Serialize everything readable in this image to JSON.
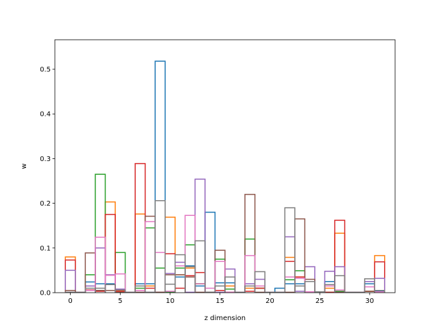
{
  "chart_data": {
    "type": "step",
    "title": "",
    "xlabel": "z dimension",
    "ylabel": "w",
    "xlim": [
      -1.55,
      32.55
    ],
    "ylim": [
      0,
      0.566
    ],
    "xticks": [
      0,
      5,
      10,
      15,
      20,
      25,
      30
    ],
    "yticks": [
      0.0,
      0.1,
      0.2,
      0.3,
      0.4,
      0.5
    ],
    "bins": [
      0,
      1,
      2,
      3,
      4,
      5,
      6,
      7,
      8,
      9,
      10,
      11,
      12,
      13,
      14,
      15,
      16,
      17,
      18,
      19,
      20,
      21,
      22,
      23,
      24,
      25,
      26,
      27,
      28,
      29,
      30,
      31
    ],
    "series": [
      {
        "color": "#1f77b4",
        "values": [
          0.005,
          0.001,
          0.024,
          0.02,
          0.02,
          0.007,
          0.001,
          0.02,
          0.02,
          0.518,
          0.001,
          0.035,
          0.06,
          0.015,
          0.18,
          0.022,
          0.022,
          0.001,
          0.015,
          0.015,
          0.001,
          0.01,
          0.02,
          0.02,
          0.002,
          0.002,
          0.025,
          0.002,
          0.001,
          0.001,
          0.02,
          0.003
        ]
      },
      {
        "color": "#ff7f0e",
        "values": [
          0.08,
          0.001,
          0.015,
          0.005,
          0.203,
          0.005,
          0.001,
          0.176,
          0.015,
          0.001,
          0.169,
          0.04,
          0.055,
          0.02,
          0.001,
          0.015,
          0.015,
          0.001,
          0.01,
          0.01,
          0.001,
          0.001,
          0.079,
          0.035,
          0.002,
          0.002,
          0.01,
          0.133,
          0.001,
          0.001,
          0.003,
          0.083
        ]
      },
      {
        "color": "#2ca02c",
        "values": [
          0.001,
          0.001,
          0.04,
          0.265,
          0.005,
          0.09,
          0.001,
          0.01,
          0.145,
          0.055,
          0.001,
          0.055,
          0.107,
          0.02,
          0.001,
          0.075,
          0.008,
          0.001,
          0.12,
          0.01,
          0.001,
          0.001,
          0.029,
          0.049,
          0.002,
          0.002,
          0.001,
          0.003,
          0.001,
          0.001,
          0.003,
          0.002
        ]
      },
      {
        "color": "#d62728",
        "values": [
          0.073,
          0.001,
          0.006,
          0.003,
          0.175,
          0.003,
          0.001,
          0.289,
          0.01,
          0.001,
          0.087,
          0.01,
          0.038,
          0.045,
          0.001,
          0.005,
          0.001,
          0.001,
          0.003,
          0.01,
          0.001,
          0.001,
          0.07,
          0.035,
          0.002,
          0.002,
          0.001,
          0.162,
          0.001,
          0.001,
          0.003,
          0.069
        ]
      },
      {
        "color": "#9467bd",
        "values": [
          0.05,
          0.001,
          0.015,
          0.1,
          0.04,
          0.008,
          0.001,
          0.001,
          0.001,
          0.001,
          0.043,
          0.068,
          0.001,
          0.254,
          0.001,
          0.001,
          0.053,
          0.001,
          0.02,
          0.03,
          0.001,
          0.001,
          0.125,
          0.003,
          0.058,
          0.002,
          0.048,
          0.058,
          0.001,
          0.001,
          0.025,
          0.032
        ]
      },
      {
        "color": "#8c564b",
        "values": [
          0.005,
          0.001,
          0.089,
          0.005,
          0.005,
          0.001,
          0.001,
          0.001,
          0.171,
          0.001,
          0.04,
          0.04,
          0.035,
          0.001,
          0.001,
          0.095,
          0.001,
          0.001,
          0.22,
          0.001,
          0.001,
          0.001,
          0.001,
          0.165,
          0.03,
          0.002,
          0.018,
          0.001,
          0.001,
          0.001,
          0.003,
          0.002
        ]
      },
      {
        "color": "#e377c2",
        "values": [
          0.001,
          0.001,
          0.005,
          0.124,
          0.039,
          0.042,
          0.001,
          0.005,
          0.159,
          0.09,
          0.003,
          0.06,
          0.173,
          0.02,
          0.01,
          0.07,
          0.001,
          0.001,
          0.083,
          0.015,
          0.001,
          0.001,
          0.035,
          0.032,
          0.002,
          0.002,
          0.015,
          0.006,
          0.001,
          0.001,
          0.013,
          0.002
        ]
      },
      {
        "color": "#7f7f7f",
        "values": [
          0.001,
          0.001,
          0.01,
          0.01,
          0.018,
          0.006,
          0.001,
          0.015,
          0.001,
          0.206,
          0.019,
          0.085,
          0.058,
          0.116,
          0.001,
          0.015,
          0.035,
          0.001,
          0.015,
          0.047,
          0.001,
          0.001,
          0.19,
          0.015,
          0.025,
          0.002,
          0.018,
          0.038,
          0.001,
          0.001,
          0.031,
          0.005
        ]
      }
    ]
  }
}
